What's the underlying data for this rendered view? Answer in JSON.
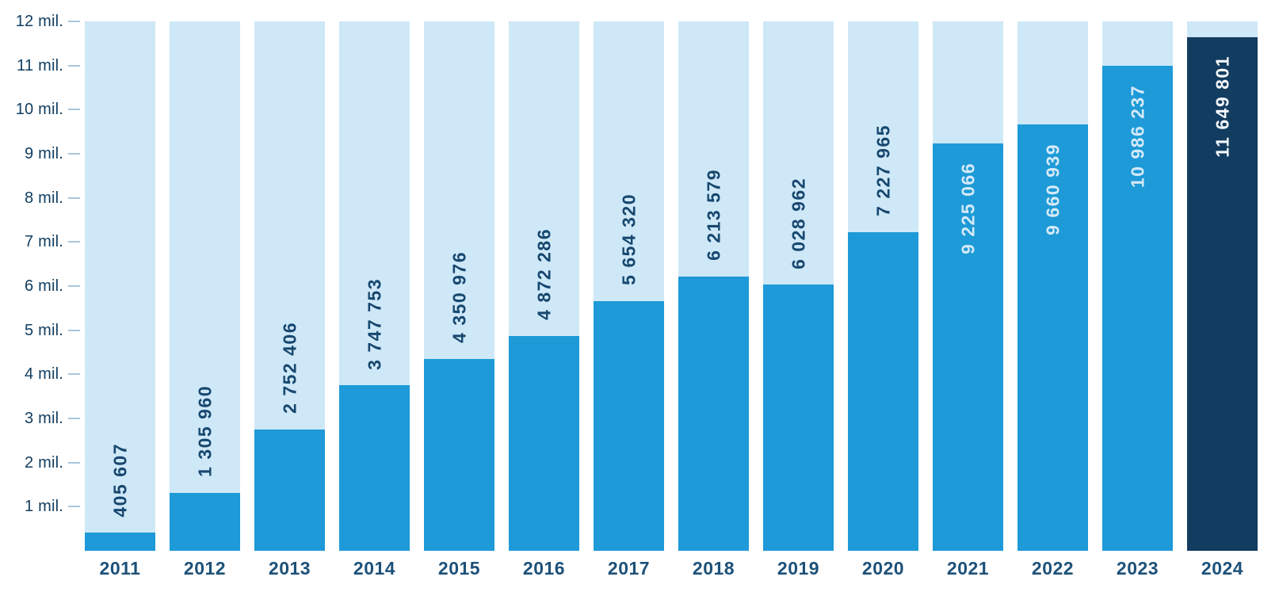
{
  "chart_data": {
    "type": "bar",
    "title": "",
    "xlabel": "",
    "ylabel": "",
    "ylim": [
      0,
      12000000
    ],
    "grid": "tick-dashes-only",
    "legend": "none",
    "categories": [
      "2011",
      "2012",
      "2013",
      "2014",
      "2015",
      "2016",
      "2017",
      "2018",
      "2019",
      "2020",
      "2021",
      "2022",
      "2023",
      "2024"
    ],
    "values": [
      405607,
      1305960,
      2752406,
      3747753,
      4350976,
      4872286,
      5654320,
      6213579,
      6028962,
      7227965,
      9225066,
      9660939,
      10986237,
      11649801
    ],
    "value_labels": [
      "405 607",
      "1 305 960",
      "2 752 406",
      "3 747 753",
      "4 350 976",
      "4 872 286",
      "5 654 320",
      "6 213 579",
      "6 028 962",
      "7 227 965",
      "9 225 066",
      "9 660 939",
      "10 986 237",
      "11 649 801"
    ],
    "value_label_inside_bar": [
      false,
      false,
      false,
      false,
      false,
      false,
      false,
      false,
      false,
      false,
      true,
      true,
      true,
      true
    ],
    "highlighted_category": "2024",
    "y_ticks": [
      {
        "value": 1000000,
        "label": "1 mil."
      },
      {
        "value": 2000000,
        "label": "2 mil."
      },
      {
        "value": 3000000,
        "label": "3 mil."
      },
      {
        "value": 4000000,
        "label": "4 mil."
      },
      {
        "value": 5000000,
        "label": "5 mil."
      },
      {
        "value": 6000000,
        "label": "6 mil."
      },
      {
        "value": 7000000,
        "label": "7 mil."
      },
      {
        "value": 8000000,
        "label": "8 mil."
      },
      {
        "value": 9000000,
        "label": "9 mil."
      },
      {
        "value": 10000000,
        "label": "10 mil."
      },
      {
        "value": 11000000,
        "label": "11 mil."
      },
      {
        "value": 12000000,
        "label": "12 mil."
      }
    ],
    "track_full_height_value": 12000000
  },
  "colors": {
    "background": "#FFFFFF",
    "bar_track": "#CEE8F8",
    "bar_fill": "#1D9AD7",
    "bar_highlight": "#123C60",
    "value_text_dark": "#17476E",
    "value_text_light": "#D5EAF8",
    "value_text_on_highlight": "#F4F8FB",
    "axis_tick_text": "#123E60",
    "axis_tick_mark": "#A6C6DC",
    "x_axis_text": "#1D5179"
  }
}
